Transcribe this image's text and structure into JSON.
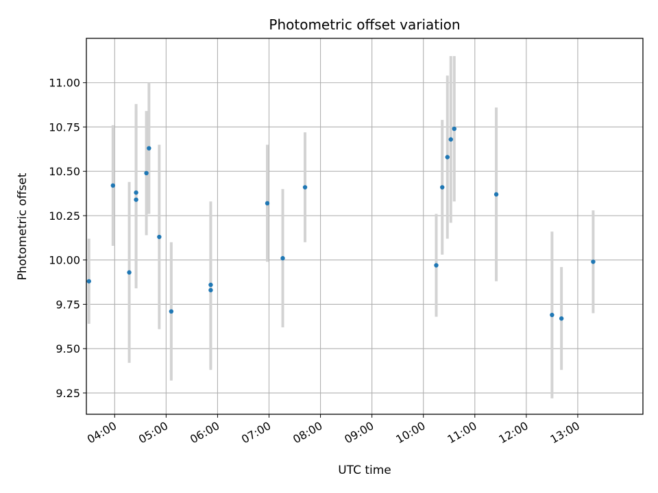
{
  "chart_data": {
    "type": "scatter",
    "title": "Photometric offset variation",
    "xlabel": "UTC time",
    "ylabel": "Photometric offset",
    "xlim": [
      "03:27",
      "14:16"
    ],
    "ylim": [
      9.13,
      11.25
    ],
    "x_ticks": [
      "04:00",
      "05:00",
      "06:00",
      "07:00",
      "08:00",
      "09:00",
      "10:00",
      "11:00",
      "12:00",
      "13:00"
    ],
    "y_ticks": [
      "9.25",
      "9.50",
      "9.75",
      "10.00",
      "10.25",
      "10.50",
      "10.75",
      "11.00"
    ],
    "grid": true,
    "legend": "none",
    "marker_color": "#1f77b4",
    "errorbar_color": "#d3d3d3",
    "points": [
      {
        "x": "03:30",
        "y": 9.88,
        "err": 0.24
      },
      {
        "x": "03:58",
        "y": 10.42,
        "err": 0.34
      },
      {
        "x": "04:17",
        "y": 9.93,
        "err": 0.51
      },
      {
        "x": "04:25",
        "y": 10.38,
        "err": 0.5
      },
      {
        "x": "04:25",
        "y": 10.34,
        "err": 0.5
      },
      {
        "x": "04:37",
        "y": 10.49,
        "err": 0.35
      },
      {
        "x": "04:40",
        "y": 10.63,
        "err": 0.37
      },
      {
        "x": "04:52",
        "y": 10.13,
        "err": 0.52
      },
      {
        "x": "05:06",
        "y": 9.71,
        "err": 0.39
      },
      {
        "x": "05:52",
        "y": 9.86,
        "err": 0.47
      },
      {
        "x": "05:52",
        "y": 9.83,
        "err": 0.45
      },
      {
        "x": "06:58",
        "y": 10.32,
        "err": 0.33
      },
      {
        "x": "07:16",
        "y": 10.01,
        "err": 0.39
      },
      {
        "x": "07:42",
        "y": 10.41,
        "err": 0.31
      },
      {
        "x": "10:15",
        "y": 9.97,
        "err": 0.29
      },
      {
        "x": "10:22",
        "y": 10.41,
        "err": 0.38
      },
      {
        "x": "10:28",
        "y": 10.58,
        "err": 0.46
      },
      {
        "x": "10:32",
        "y": 10.68,
        "err": 0.47
      },
      {
        "x": "10:36",
        "y": 10.74,
        "err": 0.41
      },
      {
        "x": "11:25",
        "y": 10.37,
        "err": 0.49
      },
      {
        "x": "12:30",
        "y": 9.69,
        "err": 0.47
      },
      {
        "x": "12:41",
        "y": 9.67,
        "err": 0.29
      },
      {
        "x": "13:18",
        "y": 9.99,
        "err": 0.29
      }
    ]
  }
}
